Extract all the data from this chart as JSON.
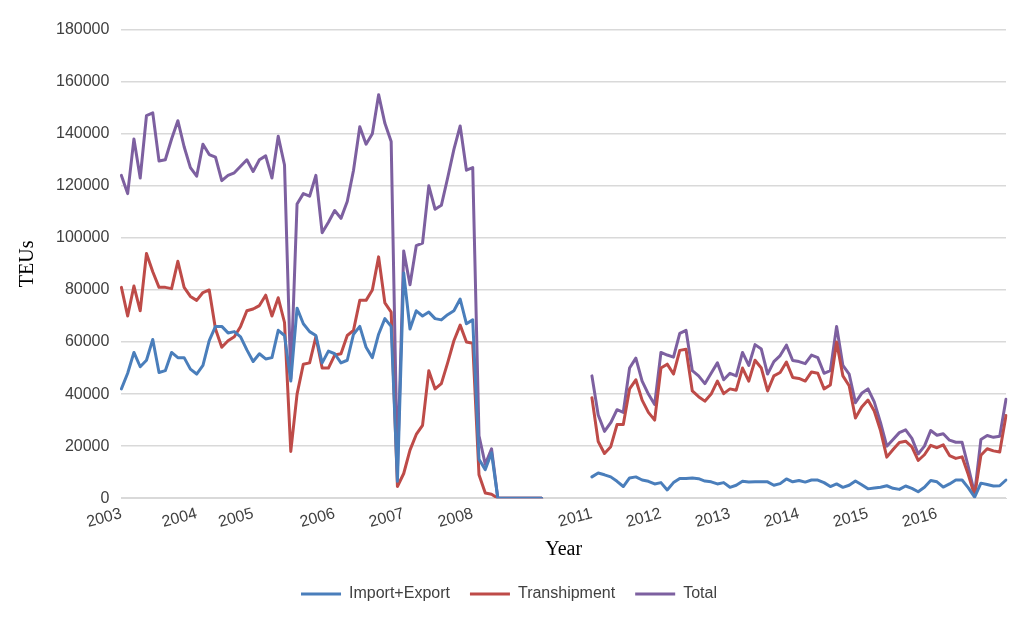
{
  "chart_data": {
    "type": "line",
    "xlabel": "Year",
    "ylabel": "TEUs",
    "ylim": [
      0,
      180000
    ],
    "yticks": [
      0,
      20000,
      40000,
      60000,
      80000,
      100000,
      120000,
      140000,
      160000,
      180000
    ],
    "grid": "y",
    "legend": "bottom",
    "marker": "none",
    "line_style": "solid",
    "categories": [
      "2003",
      null,
      null,
      null,
      null,
      null,
      null,
      null,
      null,
      null,
      null,
      null,
      "2004",
      null,
      null,
      null,
      null,
      null,
      null,
      null,
      null,
      "2005",
      null,
      null,
      null,
      null,
      null,
      null,
      null,
      null,
      null,
      null,
      null,
      null,
      "2006",
      null,
      null,
      null,
      null,
      null,
      null,
      null,
      null,
      null,
      null,
      "2007",
      null,
      null,
      null,
      null,
      null,
      null,
      null,
      null,
      null,
      null,
      "2008",
      null,
      null,
      null,
      null,
      null,
      null,
      null,
      null,
      null,
      null,
      null,
      null,
      null,
      null,
      null,
      null,
      null,
      null,
      "2011",
      null,
      null,
      null,
      null,
      null,
      null,
      null,
      null,
      null,
      null,
      "2012",
      null,
      null,
      null,
      null,
      null,
      null,
      null,
      null,
      null,
      null,
      "2013",
      null,
      null,
      null,
      null,
      null,
      null,
      null,
      null,
      null,
      null,
      "2014",
      null,
      null,
      null,
      null,
      null,
      null,
      null,
      null,
      null,
      null,
      "2015",
      null,
      null,
      null,
      null,
      null,
      null,
      null,
      null,
      null,
      null,
      "2016",
      null,
      null,
      null,
      null,
      null,
      null,
      null,
      null,
      null,
      null,
      null
    ],
    "series": [
      {
        "name": "Import+Export",
        "color": "#4a7ebb",
        "values": [
          42000,
          48000,
          56000,
          50500,
          53000,
          61000,
          48300,
          49000,
          56000,
          54000,
          54000,
          49600,
          47700,
          51000,
          60500,
          66000,
          66000,
          63500,
          64000,
          62000,
          57000,
          52500,
          55500,
          53500,
          54000,
          64500,
          62500,
          45000,
          73000,
          67000,
          64000,
          62500,
          52000,
          56500,
          55500,
          52000,
          53000,
          63000,
          66000,
          58000,
          54000,
          63000,
          69000,
          66000,
          6500,
          86500,
          65000,
          72000,
          70000,
          71500,
          69000,
          68500,
          70500,
          72000,
          76500,
          67000,
          68500,
          15000,
          11000,
          17500,
          0,
          0,
          0,
          0,
          0,
          0,
          0,
          0,
          null,
          null,
          null,
          null,
          null,
          null,
          null,
          8200,
          9700,
          9000,
          8200,
          6500,
          4500,
          7800,
          8200,
          7000,
          6500,
          5500,
          6000,
          3200,
          6000,
          7600,
          7600,
          7800,
          7500,
          6600,
          6300,
          5500,
          6000,
          4200,
          5000,
          6500,
          6200,
          6300,
          6300,
          6300,
          5000,
          5600,
          7400,
          6300,
          6800,
          6200,
          7000,
          7000,
          6000,
          4500,
          5500,
          4200,
          5000,
          6600,
          5200,
          3600,
          3900,
          4200,
          4800,
          3800,
          3400,
          4700,
          3800,
          2500,
          4200,
          6800,
          6300,
          4300,
          5500,
          7000,
          7000,
          4000,
          400,
          5800,
          5300,
          4700,
          4800,
          7000
        ]
      },
      {
        "name": "Transhipment",
        "color": "#be4b48",
        "values": [
          81000,
          70000,
          81500,
          72000,
          94000,
          87000,
          81000,
          81000,
          80500,
          91000,
          81000,
          77500,
          76000,
          79000,
          80000,
          65000,
          58000,
          60500,
          62000,
          66000,
          72000,
          72700,
          74000,
          78000,
          70000,
          77000,
          67500,
          18000,
          40000,
          51500,
          52000,
          62000,
          50000,
          50000,
          55000,
          55500,
          62500,
          64500,
          76000,
          76000,
          80000,
          92700,
          75000,
          71500,
          4500,
          9500,
          18500,
          24500,
          28000,
          49000,
          42000,
          44000,
          52000,
          60500,
          66500,
          60000,
          59500,
          9000,
          2000,
          1500,
          0,
          0,
          0,
          0,
          0,
          0,
          0,
          0,
          null,
          null,
          null,
          null,
          null,
          null,
          null,
          38600,
          21800,
          17200,
          19800,
          28300,
          28300,
          42000,
          45500,
          37700,
          33000,
          30000,
          50000,
          51500,
          47700,
          56800,
          57200,
          41200,
          39000,
          37300,
          40000,
          45000,
          40200,
          42000,
          41500,
          50000,
          45000,
          53000,
          50000,
          41200,
          47000,
          48300,
          52300,
          46400,
          46000,
          45000,
          48500,
          48000,
          42000,
          43500,
          60000,
          47000,
          43200,
          30800,
          35000,
          37700,
          33500,
          26000,
          15800,
          18700,
          21400,
          21900,
          19700,
          14500,
          16700,
          20300,
          19400,
          20500,
          16400,
          15300,
          15900,
          9000,
          1000,
          16500,
          19000,
          18200,
          17800,
          31800
        ]
      },
      {
        "name": "Total",
        "color": "#7d60a0",
        "values": [
          124000,
          117000,
          138000,
          123000,
          147000,
          148000,
          129500,
          130000,
          138000,
          145000,
          135000,
          127000,
          123700,
          136000,
          132000,
          131000,
          122000,
          124000,
          125000,
          127500,
          130000,
          125500,
          130000,
          131500,
          123000,
          139000,
          128000,
          46000,
          113000,
          117000,
          116000,
          124000,
          102000,
          106000,
          110500,
          107500,
          114000,
          126000,
          142700,
          136000,
          140000,
          155000,
          144000,
          137000,
          11000,
          95000,
          82000,
          97000,
          98000,
          120000,
          111000,
          112500,
          123000,
          134000,
          143000,
          126000,
          127000,
          24000,
          13000,
          19000,
          0,
          0,
          0,
          0,
          0,
          0,
          0,
          0,
          null,
          null,
          null,
          null,
          null,
          null,
          null,
          47000,
          32000,
          25700,
          29000,
          34000,
          33000,
          50000,
          53800,
          45000,
          40000,
          36000,
          56000,
          55000,
          54200,
          63300,
          64500,
          49000,
          47000,
          44000,
          48000,
          52000,
          45500,
          48000,
          47000,
          56000,
          51000,
          59000,
          57300,
          47700,
          52500,
          54800,
          58800,
          52900,
          52500,
          51700,
          55000,
          54000,
          48000,
          49000,
          66000,
          51000,
          47700,
          36700,
          40300,
          42000,
          37000,
          29000,
          20000,
          22600,
          25200,
          26300,
          23000,
          17000,
          20000,
          26000,
          24200,
          24800,
          22300,
          21500,
          21500,
          12000,
          1700,
          22600,
          24100,
          23400,
          23800,
          38000
        ]
      }
    ]
  }
}
